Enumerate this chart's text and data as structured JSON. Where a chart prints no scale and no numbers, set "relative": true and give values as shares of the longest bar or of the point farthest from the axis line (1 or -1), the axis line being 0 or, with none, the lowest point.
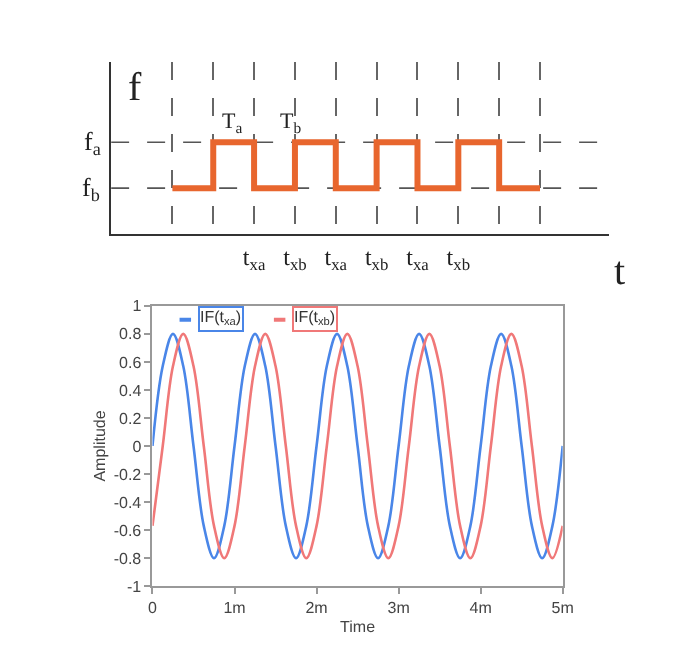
{
  "chart_data": [
    {
      "type": "step",
      "relative": true,
      "xlabel": "t",
      "ylabel": "f",
      "categories": [
        null,
        null,
        "t$_{xa}$",
        "t$_{xb}$",
        "t$_{xa}$",
        "t$_{xb}$",
        "t$_{xa}$",
        "t$_{xb}$",
        null,
        null
      ],
      "series": [
        {
          "color": "#e8662e",
          "values": [
            0.5,
            1,
            0.5,
            1,
            0.5,
            1,
            0.5,
            1,
            0.5,
            0.5
          ]
        }
      ],
      "grid": "x",
      "ref_lines": [
        {
          "axis": "y",
          "value": 1,
          "label": "f$_{a}$",
          "line_style": "dashed",
          "color": "#555555"
        },
        {
          "axis": "y",
          "value": 0.5,
          "label": "f$_{b}$",
          "line_style": "dashed",
          "color": "#555555"
        }
      ],
      "annotations": [
        "T$_{a}$",
        "T$_{b}$"
      ]
    },
    {
      "type": "line",
      "xlabel": "Time",
      "ylabel": "Amplitude",
      "x": [
        0,
        0.125,
        0.25,
        0.375,
        0.5,
        0.625,
        0.75,
        0.875,
        1,
        1.125,
        1.25,
        1.375,
        1.5,
        1.625,
        1.75,
        1.875,
        2,
        2.125,
        2.25,
        2.375,
        2.5,
        2.625,
        2.75,
        2.875,
        3,
        3.125,
        3.25,
        3.375,
        3.5,
        3.625,
        3.75,
        3.875,
        4,
        4.125,
        4.25,
        4.375,
        4.5,
        4.625,
        4.75,
        4.875,
        5
      ],
      "series": [
        {
          "name": "IF(t$_{xa}$)",
          "color": "#4a86e8",
          "values": [
            0,
            0.57,
            0.8,
            0.57,
            0,
            -0.57,
            -0.8,
            -0.57,
            0,
            0.57,
            0.8,
            0.57,
            0,
            -0.57,
            -0.8,
            -0.57,
            0,
            0.57,
            0.8,
            0.57,
            0,
            -0.57,
            -0.8,
            -0.57,
            0,
            0.57,
            0.8,
            0.57,
            0,
            -0.57,
            -0.8,
            -0.57,
            0,
            0.57,
            0.8,
            0.57,
            0,
            -0.57,
            -0.8,
            -0.57,
            0
          ]
        },
        {
          "name": "IF(t$_{xb}$)",
          "color": "#f07878",
          "values": [
            -0.57,
            0,
            0.57,
            0.8,
            0.57,
            0,
            -0.57,
            -0.8,
            -0.57,
            0,
            0.57,
            0.8,
            0.57,
            0,
            -0.57,
            -0.8,
            -0.57,
            0,
            0.57,
            0.8,
            0.57,
            0,
            -0.57,
            -0.8,
            -0.57,
            0,
            0.57,
            0.8,
            0.57,
            0,
            -0.57,
            -0.8,
            -0.57,
            0,
            0.57,
            0.8,
            0.57,
            0,
            -0.57,
            -0.8,
            -0.57
          ]
        }
      ],
      "xlim": [
        0,
        5
      ],
      "xticks": [
        0,
        {
          "value": 1,
          "label": "1m"
        },
        {
          "value": 2,
          "label": "2m"
        },
        {
          "value": 3,
          "label": "3m"
        },
        {
          "value": 4,
          "label": "4m"
        },
        {
          "value": 5,
          "label": "5m"
        }
      ],
      "ylim": [
        -1,
        1
      ],
      "yticks": [
        -1,
        -0.8,
        -0.6,
        -0.4,
        -0.2,
        0,
        0.2,
        0.4,
        0.6,
        0.8,
        1
      ],
      "legend": "top left"
    }
  ]
}
